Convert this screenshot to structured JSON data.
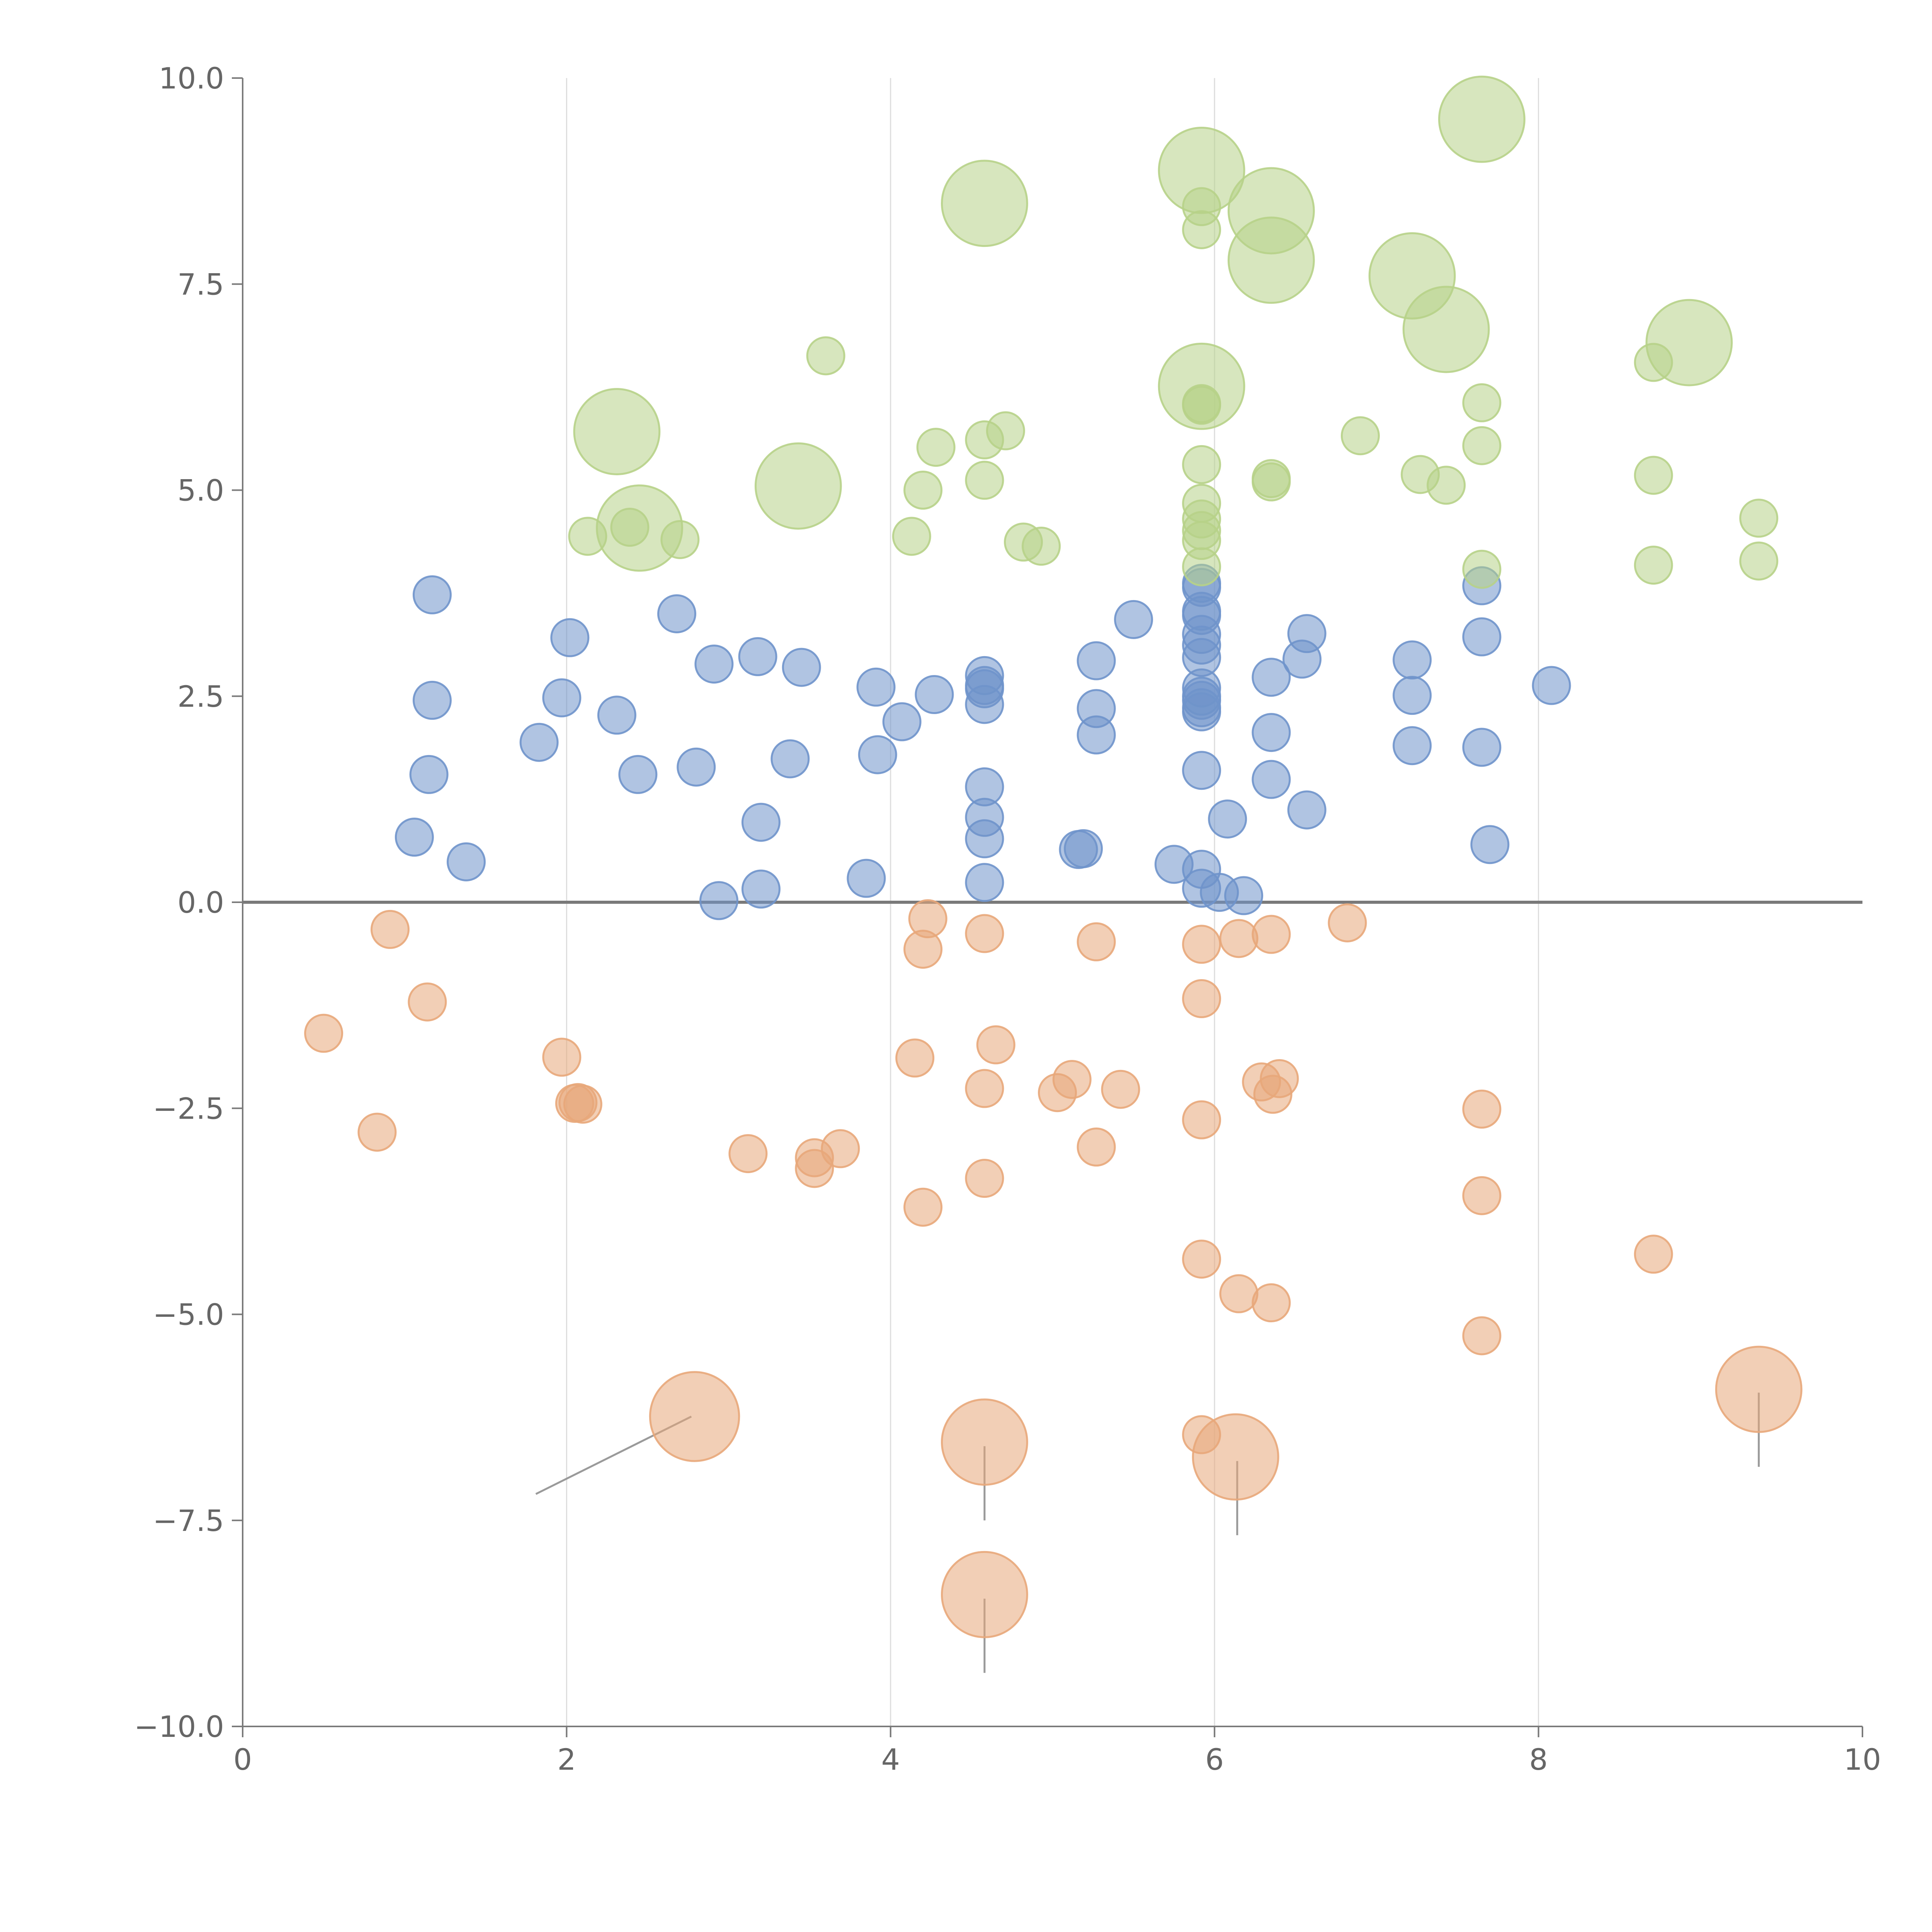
{
  "chart_data": {
    "type": "scatter",
    "title": "",
    "xlabel": "",
    "ylabel": "",
    "xlim": [
      0,
      10
    ],
    "ylim": [
      -10,
      10
    ],
    "x_ticks": [
      0,
      2,
      4,
      6,
      8,
      10
    ],
    "x_tick_labels": [
      "0",
      "2",
      "4",
      "6",
      "8",
      "10"
    ],
    "y_ticks": [
      10,
      7.5,
      5,
      2.5,
      0,
      -2.5,
      -5,
      -7.5,
      -10
    ],
    "y_tick_labels": [
      "10.0",
      "7.5",
      "5.0",
      "2.5",
      "0.0",
      "−2.5",
      "−5.0",
      "−7.5",
      "−10.0"
    ],
    "vertical_gridlines_at": [
      2,
      4,
      6,
      8
    ],
    "zero_line": true,
    "series": [
      {
        "name": "blue",
        "color": "#6f93cb",
        "points": [
          [
            1.17,
            3.73,
            1
          ],
          [
            1.17,
            2.45,
            1
          ],
          [
            1.15,
            1.55,
            1
          ],
          [
            1.06,
            0.79,
            1
          ],
          [
            1.38,
            0.49,
            1
          ],
          [
            1.83,
            1.94,
            1
          ],
          [
            1.97,
            2.48,
            1
          ],
          [
            2.02,
            3.21,
            1
          ],
          [
            2.31,
            2.27,
            1
          ],
          [
            2.44,
            1.55,
            1
          ],
          [
            2.68,
            3.5,
            1
          ],
          [
            2.8,
            1.64,
            1
          ],
          [
            2.91,
            2.89,
            1
          ],
          [
            2.94,
            0.02,
            1
          ],
          [
            3.18,
            2.98,
            1
          ],
          [
            3.2,
            0.97,
            1
          ],
          [
            3.2,
            0.16,
            1
          ],
          [
            3.38,
            1.74,
            1
          ],
          [
            3.45,
            2.85,
            1
          ],
          [
            3.85,
            0.29,
            1
          ],
          [
            3.91,
            2.61,
            1
          ],
          [
            3.92,
            1.79,
            1
          ],
          [
            4.07,
            2.19,
            1
          ],
          [
            4.27,
            2.52,
            1
          ],
          [
            4.58,
            2.75,
            1
          ],
          [
            4.58,
            2.63,
            1
          ],
          [
            4.58,
            2.59,
            1
          ],
          [
            4.58,
            2.4,
            1
          ],
          [
            4.58,
            1.4,
            1
          ],
          [
            4.58,
            1.03,
            1
          ],
          [
            4.58,
            0.77,
            1
          ],
          [
            4.58,
            0.24,
            1
          ],
          [
            5.16,
            0.64,
            1
          ],
          [
            5.19,
            0.65,
            1
          ],
          [
            5.27,
            2.93,
            1
          ],
          [
            5.27,
            2.35,
            1
          ],
          [
            5.27,
            2.03,
            1
          ],
          [
            5.5,
            3.43,
            1
          ],
          [
            5.75,
            0.46,
            1
          ],
          [
            5.92,
            3.87,
            1
          ],
          [
            5.92,
            3.82,
            1
          ],
          [
            5.92,
            3.53,
            1
          ],
          [
            5.92,
            3.48,
            1
          ],
          [
            5.92,
            3.25,
            1
          ],
          [
            5.92,
            3.12,
            1
          ],
          [
            5.92,
            2.97,
            1
          ],
          [
            5.92,
            2.6,
            1
          ],
          [
            5.92,
            2.5,
            1
          ],
          [
            5.92,
            2.45,
            1
          ],
          [
            5.92,
            2.36,
            1
          ],
          [
            5.92,
            2.31,
            1
          ],
          [
            5.92,
            1.6,
            1
          ],
          [
            5.92,
            0.4,
            1
          ],
          [
            5.92,
            0.17,
            1
          ],
          [
            6.03,
            0.12,
            1
          ],
          [
            6.08,
            1.01,
            1
          ],
          [
            6.18,
            0.08,
            1
          ],
          [
            6.35,
            2.73,
            1
          ],
          [
            6.35,
            2.06,
            1
          ],
          [
            6.35,
            1.49,
            1
          ],
          [
            6.54,
            2.95,
            1
          ],
          [
            6.57,
            3.26,
            1
          ],
          [
            6.57,
            1.12,
            1
          ],
          [
            7.22,
            2.94,
            1
          ],
          [
            7.22,
            2.51,
            1
          ],
          [
            7.22,
            1.9,
            1
          ],
          [
            7.65,
            3.84,
            1
          ],
          [
            7.65,
            3.22,
            1
          ],
          [
            7.65,
            1.88,
            1
          ],
          [
            7.7,
            0.7,
            1
          ],
          [
            8.08,
            2.63,
            1
          ]
        ]
      },
      {
        "name": "orange",
        "color": "#e8a77a",
        "points": [
          [
            0.5,
            -1.59,
            1
          ],
          [
            0.83,
            -2.79,
            1
          ],
          [
            0.91,
            -0.33,
            1
          ],
          [
            1.14,
            -1.21,
            1
          ],
          [
            1.97,
            -1.88,
            1
          ],
          [
            2.05,
            -2.44,
            1
          ],
          [
            2.1,
            -2.45,
            1
          ],
          [
            2.07,
            -2.43,
            1
          ],
          [
            2.79,
            -6.24,
            2.4
          ],
          [
            3.12,
            -3.05,
            1
          ],
          [
            3.53,
            -3.1,
            1
          ],
          [
            3.53,
            -3.23,
            1
          ],
          [
            3.69,
            -2.99,
            1
          ],
          [
            4.15,
            -1.89,
            1
          ],
          [
            4.2,
            -0.57,
            1
          ],
          [
            4.23,
            -0.2,
            1
          ],
          [
            4.2,
            -3.7,
            1
          ],
          [
            4.58,
            -0.38,
            1
          ],
          [
            4.58,
            -2.26,
            1
          ],
          [
            4.58,
            -3.35,
            1
          ],
          [
            4.58,
            -6.55,
            2.3
          ],
          [
            4.58,
            -8.4,
            2.3
          ],
          [
            4.65,
            -1.73,
            1
          ],
          [
            5.03,
            -2.31,
            1
          ],
          [
            5.12,
            -2.15,
            1
          ],
          [
            5.27,
            -0.48,
            1
          ],
          [
            5.27,
            -2.97,
            1
          ],
          [
            5.42,
            -2.27,
            1
          ],
          [
            5.92,
            -0.51,
            1
          ],
          [
            5.92,
            -1.17,
            1
          ],
          [
            5.92,
            -2.64,
            1
          ],
          [
            5.92,
            -4.33,
            1
          ],
          [
            5.92,
            -6.46,
            1
          ],
          [
            6.13,
            -6.73,
            2.3
          ],
          [
            6.15,
            -0.44,
            1
          ],
          [
            6.15,
            -4.75,
            1
          ],
          [
            6.29,
            -2.18,
            1
          ],
          [
            6.36,
            -2.33,
            1
          ],
          [
            6.4,
            -2.14,
            1
          ],
          [
            6.35,
            -0.39,
            1
          ],
          [
            6.35,
            -4.86,
            1
          ],
          [
            6.82,
            -0.25,
            1
          ],
          [
            7.65,
            -2.51,
            1
          ],
          [
            7.65,
            -3.56,
            1
          ],
          [
            7.65,
            -5.26,
            1
          ],
          [
            8.71,
            -4.27,
            1
          ],
          [
            9.36,
            -5.91,
            2.3
          ]
        ]
      },
      {
        "name": "green",
        "color": "#b7d188",
        "points": [
          [
            2.13,
            4.44,
            1
          ],
          [
            2.31,
            5.71,
            2.3
          ],
          [
            2.39,
            4.55,
            1
          ],
          [
            2.45,
            4.54,
            2.3
          ],
          [
            2.7,
            4.4,
            1
          ],
          [
            3.43,
            5.05,
            2.3
          ],
          [
            3.6,
            6.63,
            1
          ],
          [
            4.13,
            4.44,
            1
          ],
          [
            4.2,
            5.0,
            1
          ],
          [
            4.28,
            5.52,
            1
          ],
          [
            4.58,
            5.61,
            1
          ],
          [
            4.58,
            5.12,
            1
          ],
          [
            4.58,
            8.48,
            2.3
          ],
          [
            4.71,
            5.72,
            1
          ],
          [
            4.82,
            4.37,
            1
          ],
          [
            4.93,
            4.32,
            1
          ],
          [
            5.92,
            8.88,
            2.3
          ],
          [
            5.92,
            8.44,
            1
          ],
          [
            5.92,
            8.16,
            1
          ],
          [
            5.92,
            6.26,
            2.3
          ],
          [
            5.92,
            6.03,
            1
          ],
          [
            5.92,
            6.05,
            1
          ],
          [
            5.92,
            5.31,
            1
          ],
          [
            5.92,
            4.84,
            1
          ],
          [
            5.92,
            4.65,
            1
          ],
          [
            5.92,
            4.51,
            1
          ],
          [
            5.92,
            4.39,
            1
          ],
          [
            5.92,
            4.07,
            1
          ],
          [
            6.35,
            8.39,
            2.3
          ],
          [
            6.35,
            7.79,
            2.3
          ],
          [
            6.35,
            5.14,
            1
          ],
          [
            6.35,
            5.1,
            1
          ],
          [
            6.9,
            5.66,
            1
          ],
          [
            7.22,
            7.6,
            2.3
          ],
          [
            7.27,
            5.19,
            1
          ],
          [
            7.43,
            5.06,
            1
          ],
          [
            7.43,
            6.95,
            2.3
          ],
          [
            7.65,
            9.5,
            2.3
          ],
          [
            7.65,
            6.06,
            1
          ],
          [
            7.65,
            5.54,
            1
          ],
          [
            7.65,
            4.04,
            1
          ],
          [
            8.71,
            6.55,
            1
          ],
          [
            8.71,
            5.18,
            1
          ],
          [
            8.71,
            4.09,
            1
          ],
          [
            8.93,
            6.79,
            2.3
          ],
          [
            9.36,
            4.66,
            1
          ],
          [
            9.36,
            4.14,
            1
          ]
        ]
      }
    ],
    "leader_lines": [
      {
        "series": "orange",
        "from": [
          2.77,
          -6.24
        ],
        "to": [
          1.81,
          -7.18
        ]
      },
      {
        "series": "orange",
        "from": [
          4.58,
          -6.6
        ],
        "to": [
          4.58,
          -7.5
        ]
      },
      {
        "series": "orange",
        "from": [
          4.58,
          -8.45
        ],
        "to": [
          4.58,
          -9.35
        ]
      },
      {
        "series": "orange",
        "from": [
          6.14,
          -6.78
        ],
        "to": [
          6.14,
          -7.68
        ]
      },
      {
        "series": "orange",
        "from": [
          9.36,
          -5.95
        ],
        "to": [
          9.36,
          -6.85
        ]
      }
    ]
  }
}
